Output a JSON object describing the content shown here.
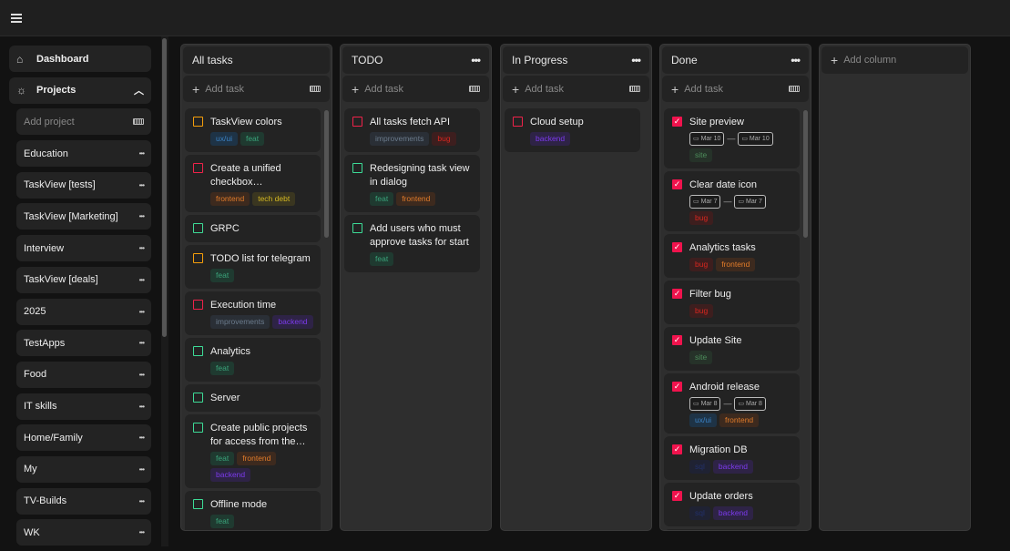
{
  "sidebar": {
    "dashboard": "Dashboard",
    "projects": "Projects",
    "add_project_placeholder": "Add project",
    "projects_list": [
      "Education",
      "TaskView [tests]",
      "TaskView [Marketing]",
      "Interview",
      "TaskView [deals]",
      "2025",
      "TestApps",
      "Food",
      "IT skills",
      "Home/Family",
      "My",
      "TV-Builds",
      "WK"
    ]
  },
  "board": {
    "add_task": "Add task",
    "add_column": "Add column",
    "tag_colors": {
      "ux/ui": [
        "#3b82c4",
        "#1e3346"
      ],
      "feat": [
        "#3aa37a",
        "#1f3a30"
      ],
      "frontend": [
        "#e07b2a",
        "#3d2a1e"
      ],
      "tech debt": [
        "#d4b822",
        "#3a3620"
      ],
      "bug": [
        "#d7261e",
        "#3d1e1e"
      ],
      "improvements": [
        "#6b7b8c",
        "#2a2f36"
      ],
      "backend": [
        "#7c3aed",
        "#2e2346"
      ],
      "site": [
        "#4c8c5a",
        "#263229"
      ],
      "sql": [
        "#22306a",
        "#1f2233"
      ]
    },
    "priority_colors": {
      "orange": "#f59e0b",
      "red": "#f0224a",
      "green": "#3ddc97"
    },
    "columns": [
      {
        "title": "All tasks",
        "menu": false,
        "scroll": true,
        "cards": [
          {
            "title": "TaskView colors",
            "p": "orange",
            "tags": [
              "ux/ui",
              "feat"
            ]
          },
          {
            "title": "Create a unified checkbox component…",
            "p": "red",
            "tags": [
              "frontend",
              "tech debt"
            ]
          },
          {
            "title": "GRPC",
            "p": "green",
            "tags": []
          },
          {
            "title": "TODO list for telegram",
            "p": "orange",
            "tags": [
              "feat"
            ]
          },
          {
            "title": "Execution time",
            "p": "red",
            "tags": [
              "improvements",
              "backend"
            ]
          },
          {
            "title": "Analytics",
            "p": "green",
            "tags": [
              "feat"
            ]
          },
          {
            "title": "Server",
            "p": "green",
            "tags": []
          },
          {
            "title": "Create public projects for access from the…",
            "p": "green",
            "tags": [
              "feat",
              "frontend",
              "backend"
            ]
          },
          {
            "title": "Offline mode",
            "p": "green",
            "tags": [
              "feat"
            ]
          }
        ]
      },
      {
        "title": "TODO",
        "menu": true,
        "cards": [
          {
            "title": "All tasks fetch API",
            "p": "red",
            "tags": [
              "improvements",
              "bug"
            ]
          },
          {
            "title": "Redesigning task view in dialog",
            "p": "green",
            "tags": [
              "feat",
              "frontend"
            ]
          },
          {
            "title": "Add users who must approve tasks for start",
            "p": "green",
            "tags": [
              "feat"
            ]
          }
        ]
      },
      {
        "title": "In Progress",
        "menu": true,
        "cards": [
          {
            "title": "Cloud setup",
            "p": "red",
            "tags": [
              "backend"
            ]
          }
        ]
      },
      {
        "title": "Done",
        "menu": true,
        "scroll": true,
        "cards": [
          {
            "title": "Site preview",
            "done": true,
            "dates": [
              "Mar 10",
              "Mar 10"
            ],
            "tags": [
              "site"
            ]
          },
          {
            "title": "Clear date icon",
            "done": true,
            "dates": [
              "Mar 7",
              "Mar 7"
            ],
            "tags": [
              "bug"
            ],
            "inline": true
          },
          {
            "title": "Analytics tasks",
            "done": true,
            "tags": [
              "bug",
              "frontend"
            ]
          },
          {
            "title": "Filter bug",
            "done": true,
            "tags": [
              "bug"
            ]
          },
          {
            "title": "Update Site",
            "done": true,
            "tags": [
              "site"
            ]
          },
          {
            "title": "Android release",
            "done": true,
            "dates": [
              "Mar 8",
              "Mar 8"
            ],
            "tags": [
              "ux/ui",
              "frontend"
            ]
          },
          {
            "title": "Migration DB",
            "done": true,
            "tags": [
              "sql",
              "backend"
            ]
          },
          {
            "title": "Update orders",
            "done": true,
            "tags": [
              "sql",
              "backend"
            ]
          },
          {
            "title": "",
            "done": true,
            "tags": []
          }
        ]
      }
    ]
  }
}
